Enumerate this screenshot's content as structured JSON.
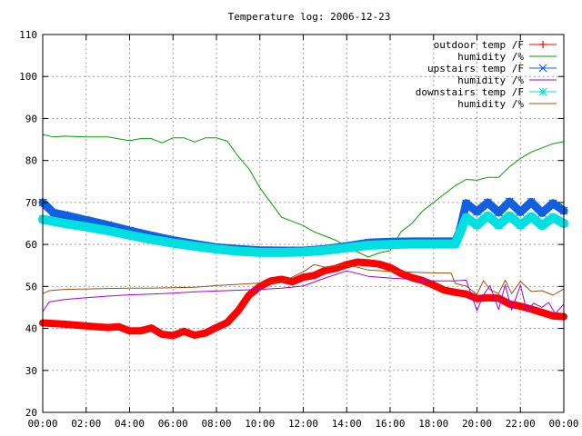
{
  "chart_data": {
    "type": "line",
    "title": "Temperature log: 2006-12-23",
    "xlabel": "",
    "ylabel": "",
    "xlim": [
      "00:00",
      "24:00"
    ],
    "ylim": [
      20,
      110
    ],
    "x_tick_labels": [
      "00:00",
      "02:00",
      "04:00",
      "06:00",
      "08:00",
      "10:00",
      "12:00",
      "14:00",
      "16:00",
      "18:00",
      "20:00",
      "22:00",
      "00:00"
    ],
    "y_ticks": [
      20,
      30,
      40,
      50,
      60,
      70,
      80,
      90,
      100,
      110
    ],
    "grid": true,
    "legend_position": "top-right",
    "series": [
      {
        "name": "outdoor temp /F",
        "color": "#ff0000",
        "marker": "plus",
        "x_hours": [
          0,
          1,
          2,
          3,
          3.5,
          4,
          4.5,
          5,
          5.5,
          6,
          6.5,
          7,
          7.5,
          8,
          8.5,
          9,
          9.5,
          10,
          10.5,
          11,
          11.5,
          12,
          12.5,
          13,
          13.5,
          14,
          14.5,
          15,
          15.5,
          16,
          16.5,
          17,
          17.5,
          18,
          18.5,
          19,
          19.5,
          20,
          20.5,
          21,
          21.5,
          22,
          22.5,
          23,
          23.5,
          24
        ],
        "values": [
          41.3,
          41,
          40.6,
          40.2,
          40.4,
          39.4,
          39.4,
          40.1,
          38.6,
          38.3,
          39.3,
          38.4,
          38.9,
          40.2,
          41.4,
          44.2,
          47.9,
          50,
          51.3,
          51.7,
          51.1,
          52.2,
          52.6,
          53.8,
          54.3,
          55.2,
          55.8,
          55.6,
          55.3,
          54.5,
          53.1,
          52.1,
          51.4,
          50.3,
          49.1,
          48.6,
          48.2,
          47.1,
          47.3,
          47.2,
          45.8,
          45.3,
          44.6,
          43.8,
          43,
          42.8
        ]
      },
      {
        "name": "humidity /%",
        "color": "#00a000",
        "marker": "",
        "x_hours": [
          0,
          0.5,
          1,
          2,
          3,
          4,
          4.5,
          5,
          5.5,
          6,
          6.5,
          7,
          7.5,
          8,
          8.5,
          9,
          9.5,
          10,
          10.5,
          11,
          11.5,
          12,
          12.5,
          13,
          13.5,
          14,
          14.5,
          15,
          15.5,
          16,
          16.5,
          17,
          17.5,
          18,
          18.5,
          19,
          19.5,
          20,
          20.5,
          21,
          21.5,
          22,
          22.5,
          23,
          23.5,
          24
        ],
        "values": [
          86.2,
          85.6,
          85.8,
          85.6,
          85.6,
          84.7,
          85.2,
          85.2,
          84.2,
          85.4,
          85.4,
          84.4,
          85.4,
          85.4,
          84.6,
          81,
          78,
          73.5,
          70,
          66.5,
          65.5,
          64.5,
          63,
          62,
          61,
          59.5,
          58.2,
          57,
          58,
          58.5,
          63,
          65,
          68,
          70,
          72,
          74,
          75.5,
          75.3,
          76,
          76,
          78.5,
          80.5,
          82,
          83,
          84,
          84.5
        ]
      },
      {
        "name": "upstairs temp /F",
        "color": "#1060e0",
        "marker": "cross",
        "x_hours": [
          0,
          0.5,
          1,
          2,
          3,
          4,
          5,
          6,
          7,
          8,
          9,
          10,
          11,
          12,
          13,
          14,
          15,
          16,
          17,
          18,
          19,
          19.2,
          19.5,
          20,
          20.5,
          21,
          21.5,
          22,
          22.5,
          23,
          23.5,
          24
        ],
        "values": [
          70,
          67.5,
          67,
          65.8,
          64.6,
          63.3,
          62.1,
          61,
          60.1,
          59.3,
          58.9,
          58.6,
          58.5,
          58.5,
          58.9,
          59.6,
          60.4,
          60.6,
          60.7,
          60.7,
          60.7,
          63,
          69.8,
          67.8,
          70,
          67.6,
          70.2,
          67.7,
          70.1,
          67.5,
          69.8,
          68
        ]
      },
      {
        "name": "humidity /%",
        "color": "#a000e0",
        "marker": "",
        "x_hours": [
          0,
          0.3,
          1,
          2,
          3,
          4,
          5,
          6,
          7,
          8,
          9,
          10,
          11,
          12,
          13,
          14,
          15,
          16,
          17,
          18,
          19,
          19.5,
          20,
          20.3,
          20.6,
          21,
          21.3,
          21.6,
          22,
          22.3,
          22.6,
          23,
          23.3,
          23.6,
          24
        ],
        "values": [
          44,
          46.3,
          46.9,
          47.3,
          47.7,
          48,
          48.2,
          48.4,
          48.7,
          48.9,
          49.1,
          49.3,
          49.6,
          50.1,
          52,
          53.7,
          52.4,
          52,
          51.7,
          51.3,
          51.3,
          51.5,
          44.2,
          48,
          50.2,
          44.5,
          50.4,
          44.4,
          50.3,
          44,
          46,
          45,
          46.2,
          43.5,
          45.8
        ]
      },
      {
        "name": "downstairs temp /F",
        "color": "#00e0e0",
        "marker": "star",
        "x_hours": [
          0,
          0.5,
          1,
          2,
          3,
          4,
          5,
          6,
          7,
          8,
          9,
          10,
          11,
          12,
          13,
          14,
          15,
          16,
          17,
          18,
          19,
          19.2,
          19.5,
          20,
          20.5,
          21,
          21.5,
          22,
          22.5,
          23,
          23.5,
          24
        ],
        "values": [
          66,
          65.5,
          65,
          64.2,
          63.3,
          62.2,
          61.2,
          60.3,
          59.6,
          58.9,
          58.4,
          58.1,
          58.1,
          58.2,
          58.6,
          59.2,
          59.8,
          60,
          60.1,
          60.1,
          60.1,
          62.5,
          66.4,
          64.6,
          66.8,
          64.6,
          66.8,
          64.6,
          66.6,
          64.5,
          66.4,
          65
        ]
      },
      {
        "name": "humidity /%",
        "color": "#a05010",
        "marker": "",
        "x_hours": [
          0,
          0.3,
          1,
          2,
          3,
          4,
          5,
          6,
          7,
          8,
          9,
          10,
          11,
          12,
          12.5,
          13,
          14,
          15,
          16,
          17,
          18,
          18.8,
          19,
          19.5,
          20,
          20.3,
          20.6,
          21,
          21.3,
          21.6,
          22,
          22.5,
          23,
          23.5,
          24
        ],
        "values": [
          48.3,
          49,
          49.3,
          49.4,
          49.5,
          49.6,
          49.6,
          49.7,
          49.8,
          50.2,
          50.5,
          50.8,
          51,
          53.5,
          55.2,
          54.6,
          55.2,
          53.9,
          53.6,
          53.4,
          53.2,
          53.2,
          50.7,
          50.1,
          48.1,
          51.4,
          49.2,
          48.3,
          51.5,
          48.3,
          51.2,
          48.8,
          49,
          47.9,
          49.4
        ]
      }
    ]
  }
}
